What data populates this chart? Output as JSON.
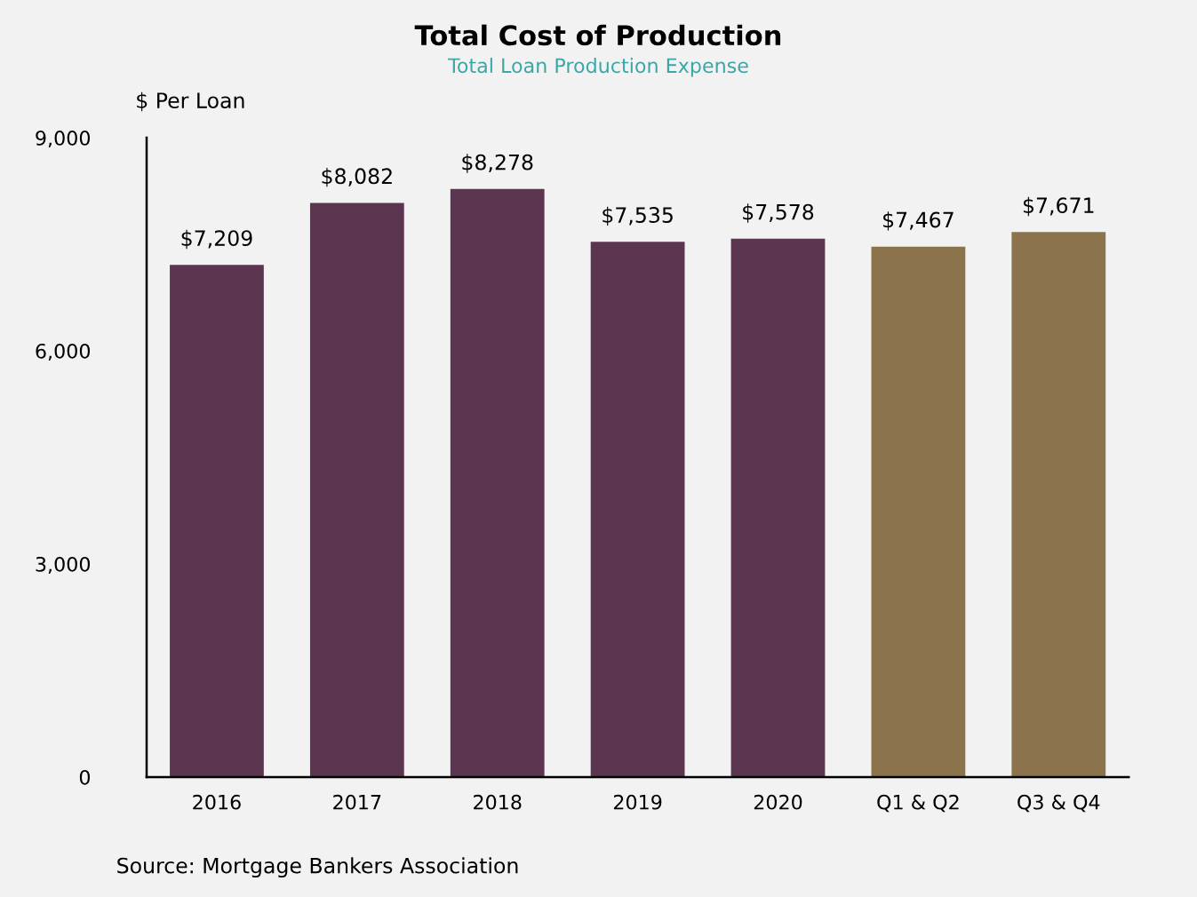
{
  "chart_data": {
    "type": "bar",
    "title": "Total Cost of Production",
    "subtitle": "Total Loan Production Expense",
    "ylabel": "$ Per Loan",
    "categories": [
      "2016",
      "2017",
      "2018",
      "2019",
      "2020",
      "Q1 & Q2",
      "Q3 & Q4"
    ],
    "values": [
      7209,
      8082,
      8278,
      7535,
      7578,
      7467,
      7671
    ],
    "colors": [
      "#5c3650",
      "#5c3650",
      "#5c3650",
      "#5c3650",
      "#5c3650",
      "#8b744b",
      "#8b744b"
    ],
    "value_labels": [
      "$7,209",
      "$8,082",
      "$8,278",
      "$7,535",
      "$7,578",
      "$7,467",
      "$7,671"
    ],
    "ylim": [
      0,
      9000
    ],
    "yticks": [
      {
        "value": 0,
        "label": "0"
      },
      {
        "value": 3000,
        "label": "3,000"
      },
      {
        "value": 6000,
        "label": "6,000"
      },
      {
        "value": 9000,
        "label": "9,000"
      }
    ],
    "grid": false,
    "legend": false,
    "annotations": [
      "Source: Mortgage Bankers Association"
    ]
  }
}
